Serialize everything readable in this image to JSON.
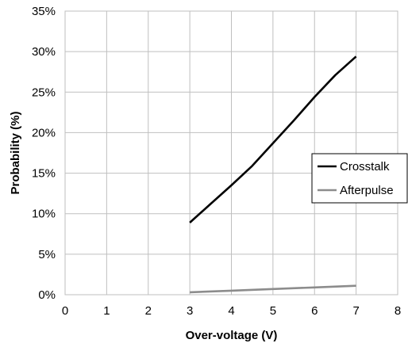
{
  "chart_data": {
    "type": "line",
    "xlabel": "Over-voltage (V)",
    "ylabel": "Probability (%)",
    "xlim": [
      0,
      8
    ],
    "ylim": [
      0,
      35
    ],
    "x_ticks": [
      0,
      1,
      2,
      3,
      4,
      5,
      6,
      7,
      8
    ],
    "y_ticks": [
      0,
      5,
      10,
      15,
      20,
      25,
      30,
      35
    ],
    "x_tick_labels": [
      "0",
      "1",
      "2",
      "3",
      "4",
      "5",
      "6",
      "7",
      "8"
    ],
    "y_tick_labels": [
      "0%",
      "5%",
      "10%",
      "15%",
      "20%",
      "25%",
      "30%",
      "35%"
    ],
    "grid": {
      "x": true,
      "y": true
    },
    "legend": {
      "position": "right"
    },
    "series": [
      {
        "name": "Crosstalk",
        "color": "#000000",
        "points": [
          [
            3,
            8.9
          ],
          [
            3.5,
            11.2
          ],
          [
            4,
            13.5
          ],
          [
            4.5,
            15.9
          ],
          [
            5,
            18.7
          ],
          [
            5.5,
            21.5
          ],
          [
            6,
            24.4
          ],
          [
            6.5,
            27.1
          ],
          [
            7,
            29.4
          ]
        ]
      },
      {
        "name": "Afterpulse",
        "color": "#8c8c8c",
        "points": [
          [
            3,
            0.3
          ],
          [
            4,
            0.5
          ],
          [
            5,
            0.7
          ],
          [
            6,
            0.9
          ],
          [
            7,
            1.1
          ]
        ]
      }
    ]
  }
}
